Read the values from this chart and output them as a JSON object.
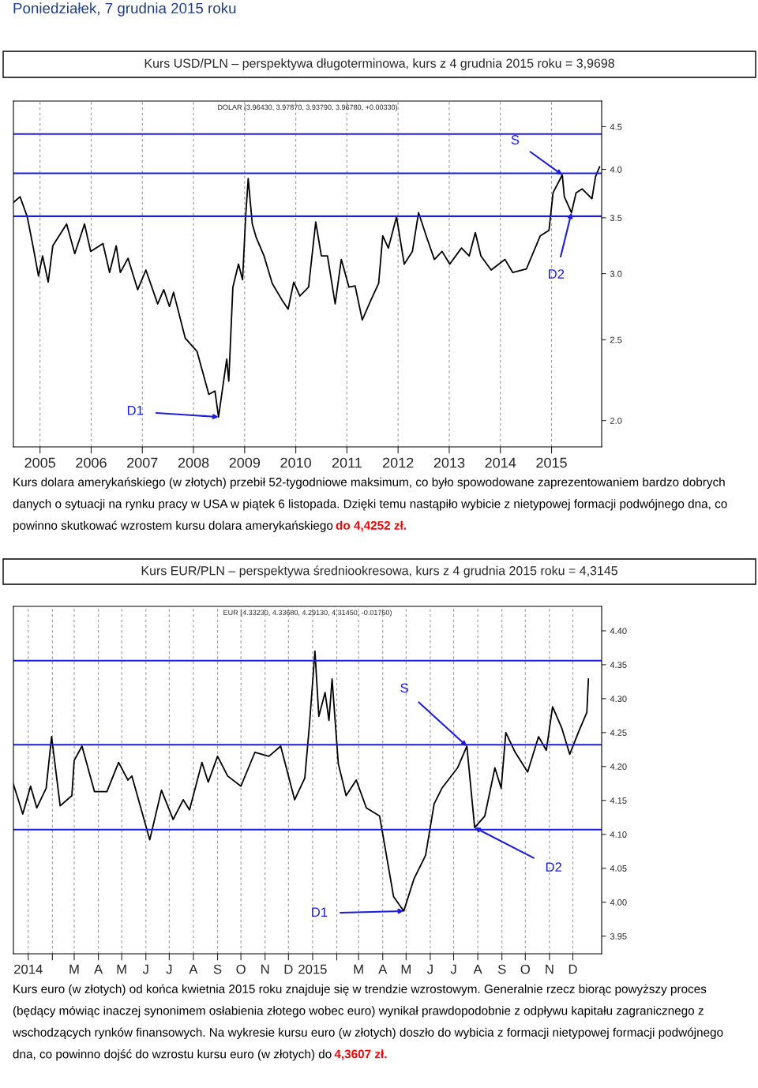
{
  "chart_data": [
    {
      "type": "line",
      "title": "Kurs USD/PLN – perspektywa długoterminowa, kurs z 4 grudnia 2015 roku = 3,9698",
      "subtitle": "Poniedziałek, 7 grudnia 2015 roku",
      "annotations": [
        "DOLAR (3.96430, 3.97870, 3.93790, 3.96780, +0.00330)",
        "Kurs dolara amerykańskiego (w złotych) przebił 52-tygodniowe maksimum, co było spowodowane zaprezentowaniem bardzo dobrych danych o sytuacji na rynku pracy w USA w piątek 6 listopada. Dzięki temu nastąpiło wybicie z nietypowej formacji podwójnego dna, co powinno skutkować wzrostem kursu dolara amerykańskiego",
        "do 4,4252 zł.",
        {
          "text": "D1",
          "x": 2008.49,
          "y": 2.02
        },
        {
          "text": "S",
          "x": 2015.21,
          "y": 3.94
        },
        {
          "text": "D2",
          "x": 2015.39,
          "y": 3.55
        }
      ],
      "x": [
        2004.48,
        2004.61,
        2004.75,
        2004.87,
        2004.97,
        2005.05,
        2005.16,
        2005.25,
        2005.52,
        2005.68,
        2005.87,
        2005.99,
        2006.23,
        2006.36,
        2006.49,
        2006.57,
        2006.72,
        2006.91,
        2007.07,
        2007.3,
        2007.42,
        2007.53,
        2007.61,
        2007.84,
        2008.07,
        2008.3,
        2008.42,
        2008.49,
        2008.65,
        2008.69,
        2008.77,
        2008.88,
        2008.96,
        2009.02,
        2009.07,
        2009.15,
        2009.23,
        2009.38,
        2009.54,
        2009.73,
        2009.85,
        2009.96,
        2010.08,
        2010.25,
        2010.39,
        2010.5,
        2010.62,
        2010.77,
        2010.89,
        2011.04,
        2011.16,
        2011.3,
        2011.47,
        2011.62,
        2011.7,
        2011.81,
        2011.97,
        2012.12,
        2012.28,
        2012.4,
        2012.55,
        2012.71,
        2012.86,
        2013.01,
        2013.24,
        2013.39,
        2013.51,
        2013.62,
        2013.82,
        2014.09,
        2014.24,
        2014.51,
        2014.78,
        2014.95,
        2015.03,
        2015.21,
        2015.25,
        2015.39,
        2015.48,
        2015.6,
        2015.79,
        2015.86,
        2015.94
      ],
      "values": [
        3.65,
        3.71,
        3.51,
        3.22,
        2.98,
        3.15,
        2.93,
        3.24,
        3.44,
        3.17,
        3.44,
        3.19,
        3.26,
        3.01,
        3.24,
        3.01,
        3.13,
        2.87,
        3.03,
        2.76,
        2.87,
        2.74,
        2.85,
        2.51,
        2.42,
        2.15,
        2.17,
        2.02,
        2.37,
        2.23,
        2.89,
        3.08,
        2.95,
        3.51,
        3.9,
        3.44,
        3.31,
        3.15,
        2.92,
        2.79,
        2.72,
        2.93,
        2.82,
        2.89,
        3.46,
        3.15,
        3.15,
        2.76,
        3.12,
        2.89,
        2.9,
        2.64,
        2.79,
        2.92,
        3.33,
        3.22,
        3.51,
        3.08,
        3.19,
        3.55,
        3.33,
        3.12,
        3.19,
        3.08,
        3.22,
        3.15,
        3.36,
        3.15,
        3.03,
        3.12,
        3.01,
        3.04,
        3.33,
        3.38,
        3.75,
        3.94,
        3.71,
        3.55,
        3.75,
        3.79,
        3.69,
        3.92,
        4.03
      ],
      "color": "#000000",
      "log": true,
      "xlim": [
        2004.48,
        2015.98
      ],
      "ylim": [
        1.86,
        4.83
      ],
      "xticks": [
        2005,
        2006,
        2007,
        2008,
        2009,
        2010,
        2011,
        2012,
        2013,
        2014,
        2015
      ],
      "yticks": [
        {
          "value": 2.0,
          "label": "2.0"
        },
        {
          "value": 2.5,
          "label": "2.5"
        },
        {
          "value": 3.0,
          "label": "3.0"
        },
        {
          "value": 3.5,
          "label": "3.5"
        },
        {
          "value": 4.0,
          "label": "4.0"
        },
        {
          "value": 4.5,
          "label": "4.5"
        }
      ],
      "grid": "x",
      "ref_lines": [
        {
          "axis": "y",
          "value": 4.41,
          "color": "#1c1ce0"
        },
        {
          "axis": "y",
          "value": 3.957,
          "color": "#1c1ce0"
        },
        {
          "axis": "y",
          "value": 3.515,
          "color": "#1c1ce0"
        }
      ]
    },
    {
      "type": "line",
      "title": "Kurs EUR/PLN – perspektywa średniookresowa, kurs z 4 grudnia 2015 roku = 4,3145",
      "annotations": [
        "EUR (4.33230, 4.33680, 4.29130, 4.31450, -0.01760)",
        "Kurs euro (w złotych) od końca kwietnia 2015 roku znajduje się w trendzie wzrostowym. Generalnie rzecz biorąc powyższy proces (będący mówiąc inaczej synonimem osłabienia złotego wobec euro) wynikał prawdopodobnie z odpływu kapitału zagranicznego z wschodzących rynków finansowych. Na wykresie kursu euro (w złotych) doszło do wybicia z formacji nietypowej formacji podwójnego dna, co powinno dojść do wzrostu kursu euro (w złotych) do",
        "4,3607 zł.",
        {
          "text": "D1",
          "x": "2015-04-28",
          "y": 3.987
        },
        {
          "text": "S",
          "x": "2015-07-18",
          "y": 4.23
        },
        {
          "text": "D2",
          "x": "2015-07-28",
          "y": 4.11
        }
      ],
      "x": [
        "2013-12-13",
        "2013-12-25",
        "2014-01-04",
        "2014-01-12",
        "2014-01-24",
        "2014-01-31",
        "2014-02-11",
        "2014-02-26",
        "2014-03-01",
        "2014-03-11",
        "2014-03-27",
        "2014-04-12",
        "2014-04-27",
        "2014-05-09",
        "2014-05-14",
        "2014-06-06",
        "2014-06-21",
        "2014-07-06",
        "2014-07-19",
        "2014-07-27",
        "2014-08-12",
        "2014-08-20",
        "2014-09-01",
        "2014-09-14",
        "2014-10-01",
        "2014-10-19",
        "2014-11-06",
        "2014-11-21",
        "2014-12-09",
        "2014-12-22",
        "2014-12-28",
        "2015-01-04",
        "2015-01-09",
        "2015-01-17",
        "2015-01-22",
        "2015-01-26",
        "2015-02-03",
        "2015-02-13",
        "2015-02-26",
        "2015-03-11",
        "2015-03-28",
        "2015-04-15",
        "2015-04-28",
        "2015-05-11",
        "2015-05-26",
        "2015-06-06",
        "2015-06-16",
        "2015-07-06",
        "2015-07-18",
        "2015-07-28",
        "2015-08-10",
        "2015-08-23",
        "2015-08-31",
        "2015-09-06",
        "2015-09-18",
        "2015-10-04",
        "2015-10-18",
        "2015-10-28",
        "2015-11-05",
        "2015-11-17",
        "2015-11-27",
        "2015-12-08",
        "2015-12-19",
        "2015-12-21"
      ],
      "values": [
        4.174,
        4.13,
        4.171,
        4.139,
        4.168,
        4.244,
        4.142,
        4.157,
        4.209,
        4.23,
        4.163,
        4.163,
        4.206,
        4.18,
        4.186,
        4.092,
        4.165,
        4.122,
        4.151,
        4.136,
        4.206,
        4.177,
        4.215,
        4.186,
        4.171,
        4.221,
        4.215,
        4.23,
        4.151,
        4.183,
        4.262,
        4.37,
        4.274,
        4.309,
        4.268,
        4.329,
        4.204,
        4.157,
        4.18,
        4.139,
        4.127,
        4.008,
        3.987,
        4.034,
        4.069,
        4.145,
        4.168,
        4.198,
        4.23,
        4.11,
        4.127,
        4.198,
        4.168,
        4.25,
        4.221,
        4.192,
        4.244,
        4.224,
        4.288,
        4.256,
        4.218,
        4.25,
        4.28,
        4.329
      ],
      "color": "#000000",
      "xlim": [
        "2013-12-13",
        "2016-01-07"
      ],
      "ylim": [
        3.924,
        4.436
      ],
      "xticks": [
        {
          "value": "2014-01-01",
          "label": "2014"
        },
        {
          "value": "2014-02-01",
          "label": null
        },
        {
          "value": "2014-03-01",
          "label": "M"
        },
        {
          "value": "2014-04-01",
          "label": "A"
        },
        {
          "value": "2014-05-01",
          "label": "M"
        },
        {
          "value": "2014-06-01",
          "label": "J"
        },
        {
          "value": "2014-07-01",
          "label": "J"
        },
        {
          "value": "2014-08-01",
          "label": "A"
        },
        {
          "value": "2014-09-01",
          "label": "S"
        },
        {
          "value": "2014-10-01",
          "label": "O"
        },
        {
          "value": "2014-11-01",
          "label": "N"
        },
        {
          "value": "2014-12-01",
          "label": "D"
        },
        {
          "value": "2015-01-01",
          "label": "2015"
        },
        {
          "value": "2015-02-01",
          "label": null
        },
        {
          "value": "2015-03-01",
          "label": "M"
        },
        {
          "value": "2015-04-01",
          "label": "A"
        },
        {
          "value": "2015-05-01",
          "label": "M"
        },
        {
          "value": "2015-06-01",
          "label": "J"
        },
        {
          "value": "2015-07-01",
          "label": "J"
        },
        {
          "value": "2015-08-01",
          "label": "A"
        },
        {
          "value": "2015-09-01",
          "label": "S"
        },
        {
          "value": "2015-10-01",
          "label": "O"
        },
        {
          "value": "2015-11-01",
          "label": "N"
        },
        {
          "value": "2015-12-01",
          "label": "D"
        }
      ],
      "yticks": [
        {
          "value": 3.95,
          "label": "3.95"
        },
        {
          "value": 4.0,
          "label": "4.00"
        },
        {
          "value": 4.05,
          "label": "4.05"
        },
        {
          "value": 4.1,
          "label": "4.10"
        },
        {
          "value": 4.15,
          "label": "4.15"
        },
        {
          "value": 4.2,
          "label": "4.20"
        },
        {
          "value": 4.25,
          "label": "4.25"
        },
        {
          "value": 4.3,
          "label": "4.30"
        },
        {
          "value": 4.35,
          "label": "4.35"
        },
        {
          "value": 4.4,
          "label": "4.40"
        }
      ],
      "grid": "x",
      "ref_lines": [
        {
          "axis": "y",
          "value": 4.356,
          "color": "#1c1ce0"
        },
        {
          "axis": "y",
          "value": 4.232,
          "color": "#1c1ce0"
        },
        {
          "axis": "y",
          "value": 4.107,
          "color": "#1c1ce0"
        }
      ]
    }
  ]
}
